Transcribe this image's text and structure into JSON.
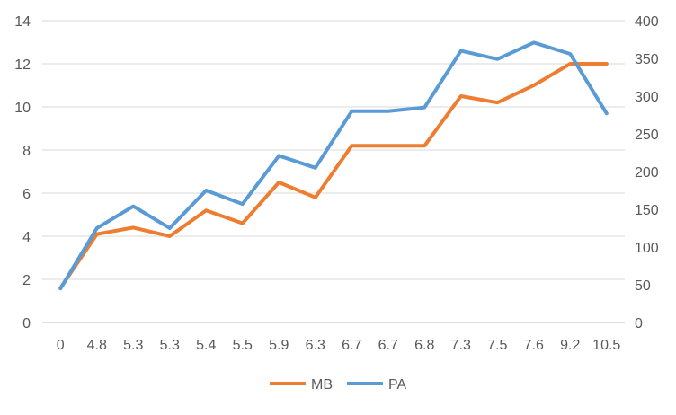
{
  "chart_data": {
    "type": "line",
    "categories": [
      "0",
      "4.8",
      "5.3",
      "5.3",
      "5.4",
      "5.5",
      "5.9",
      "6.3",
      "6.7",
      "6.7",
      "6.8",
      "7.3",
      "7.5",
      "7.6",
      "9.2",
      "10.5"
    ],
    "series": [
      {
        "name": "MB",
        "axis": "left",
        "color": "#ED7D31",
        "values": [
          1.6,
          4.1,
          4.4,
          4.0,
          5.2,
          4.6,
          6.5,
          5.8,
          8.2,
          8.2,
          8.2,
          10.5,
          10.2,
          11.0,
          12.0,
          12.0
        ]
      },
      {
        "name": "PA",
        "axis": "right",
        "color": "#5B9BD5",
        "values": [
          45,
          125,
          154,
          125,
          175,
          157,
          221,
          205,
          280,
          280,
          285,
          360,
          349,
          371,
          356,
          277
        ]
      }
    ],
    "y_left": {
      "range": [
        0,
        14
      ],
      "ticks": [
        "0",
        "2",
        "4",
        "6",
        "8",
        "10",
        "12",
        "14"
      ]
    },
    "y_right": {
      "range": [
        0,
        400
      ],
      "ticks": [
        "0",
        "50",
        "100",
        "150",
        "200",
        "250",
        "300",
        "350",
        "400"
      ]
    },
    "grid": true,
    "legend_position": "bottom",
    "title": "",
    "xlabel": "",
    "ylabel": ""
  }
}
